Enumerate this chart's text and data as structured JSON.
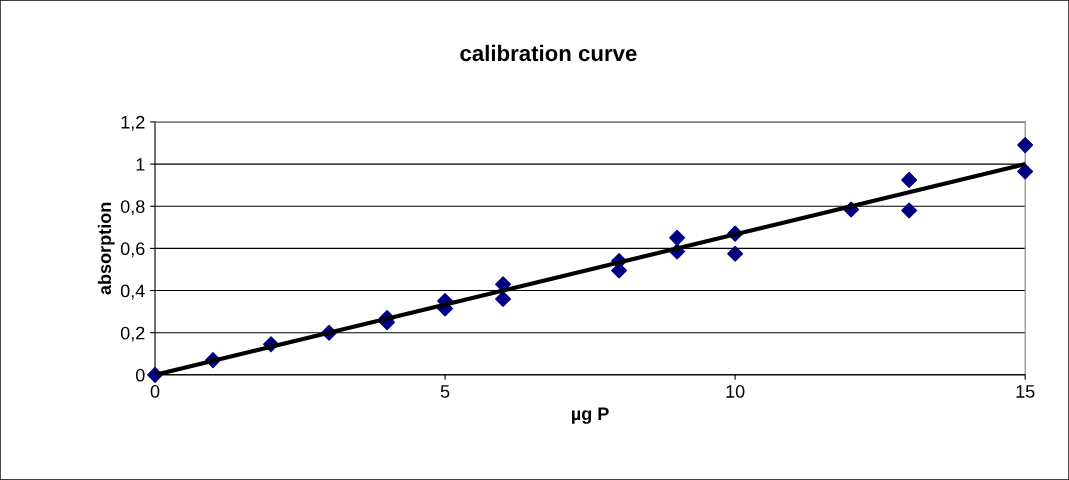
{
  "chart_data": {
    "type": "scatter",
    "title": "calibration curve",
    "xlabel": "µg P",
    "ylabel": "absorption",
    "marker": "diamond",
    "grid": "y",
    "xlim": [
      0,
      15
    ],
    "xticks": [
      0,
      5,
      10,
      15
    ],
    "ylim": [
      0,
      1.2
    ],
    "yticks": [
      0,
      {
        "value": 0.2,
        "label": "0,2"
      },
      {
        "value": 0.4,
        "label": "0,4"
      },
      {
        "value": 0.6,
        "label": "0,6"
      },
      {
        "value": 0.8,
        "label": "0,8"
      },
      1,
      {
        "value": 1.2,
        "label": "1,2"
      }
    ],
    "series": [
      {
        "color": "#000080",
        "x": [
          0,
          1,
          2,
          3,
          4,
          4,
          5,
          5,
          6,
          6,
          8,
          8,
          9,
          9,
          10,
          10,
          12,
          13,
          13,
          15,
          15
        ],
        "values": [
          0,
          0.07,
          0.145,
          0.2,
          0.27,
          0.25,
          0.35,
          0.315,
          0.43,
          0.36,
          0.54,
          0.495,
          0.65,
          0.585,
          0.67,
          0.575,
          0.785,
          0.925,
          0.78,
          1.09,
          0.965
        ]
      },
      {
        "type": "line",
        "marker": "none",
        "color": "#000000",
        "x": [
          0,
          15
        ],
        "values": [
          0,
          1.0
        ]
      }
    ]
  }
}
